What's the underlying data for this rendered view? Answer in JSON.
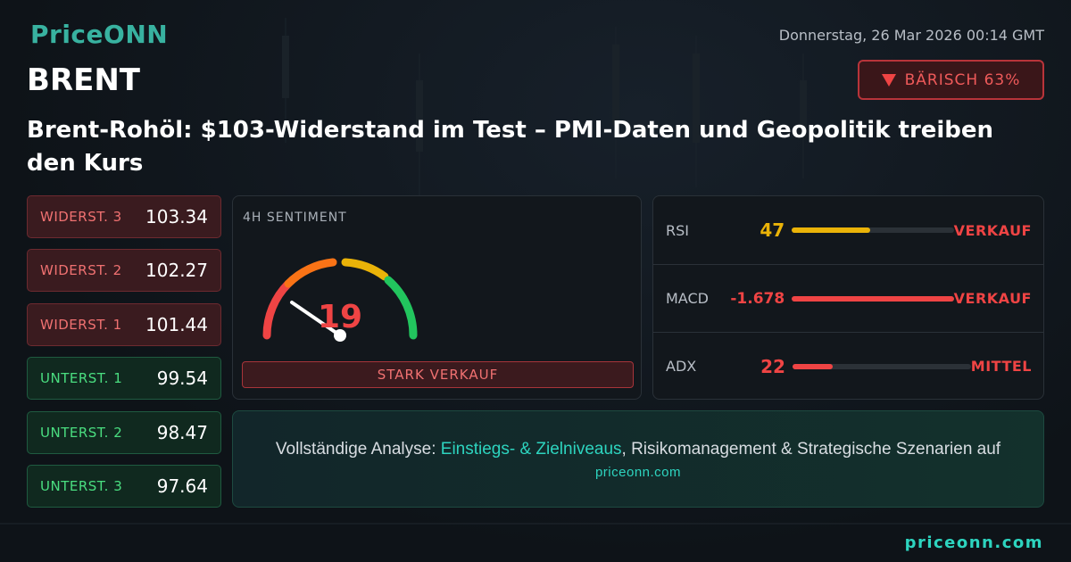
{
  "header": {
    "logo": "PriceONN",
    "date": "Donnerstag, 26 Mar 2026 00:14 GMT",
    "symbol": "BRENT",
    "signal": "BÄRISCH 63%",
    "headline": "Brent-Rohöl: $103-Widerstand im Test – PMI-Daten und Geopolitik treiben den Kurs"
  },
  "levels": [
    {
      "label": "WIDERST. 3",
      "value": 103.34
    },
    {
      "label": "WIDERST. 2",
      "value": 102.27
    },
    {
      "label": "WIDERST. 1",
      "value": 101.44
    },
    {
      "label": "UNTERST. 1",
      "value": 99.54
    },
    {
      "label": "UNTERST. 2",
      "value": 98.47
    },
    {
      "label": "UNTERST. 3",
      "value": 97.64
    }
  ],
  "sentiment": {
    "title": "4H SENTIMENT",
    "value": 19,
    "verdict": "STARK VERKAUF"
  },
  "indicators": [
    {
      "name": "RSI",
      "value": 47,
      "signal": "VERKAUF"
    },
    {
      "name": "MACD",
      "value": -1.678,
      "signal": "VERKAUF"
    },
    {
      "name": "ADX",
      "value": 22,
      "signal": "MITTEL"
    }
  ],
  "cta": {
    "lead": "Vollständige Analyse:",
    "highlight": "Einstiegs- & Zielniveaus",
    "rest": ", Risikomanagement & Strategische Szenarien auf",
    "link": "priceonn.com"
  },
  "footer": {
    "url": "priceonn.com"
  }
}
